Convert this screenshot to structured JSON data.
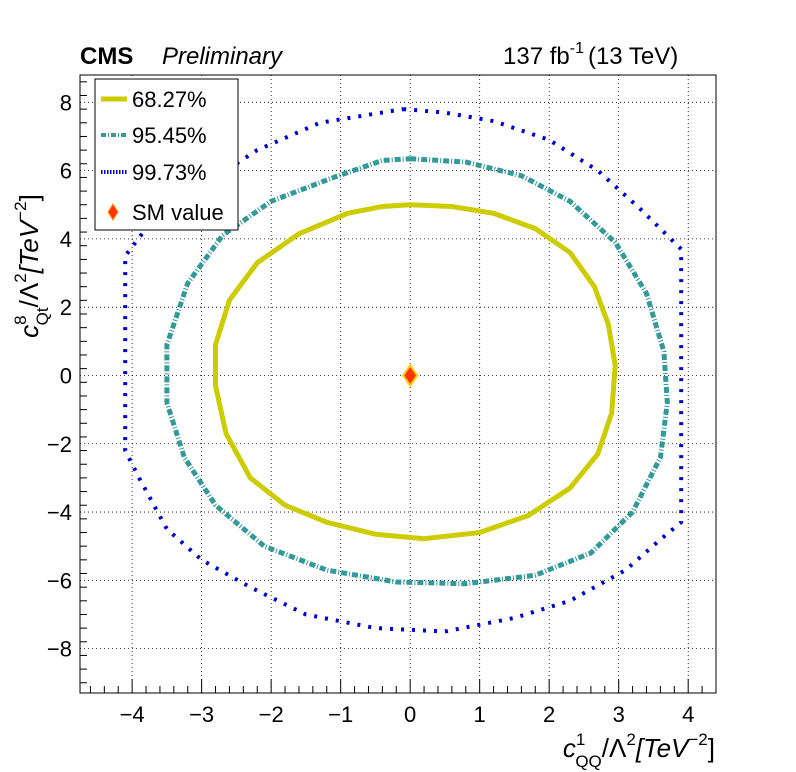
{
  "header": {
    "experiment": "CMS",
    "status": "Preliminary",
    "lumi": "137 fb",
    "lumi_exp": "-1",
    "energy": "(13 TeV)"
  },
  "chart_data": {
    "type": "scatter",
    "xlabel": {
      "c": "c",
      "sup": "1",
      "sub": "QQ",
      "rest": "/Λ",
      "sq": "2",
      "unit": "[TeV",
      "unit_exp": "−2",
      "close": "]"
    },
    "ylabel": {
      "c": "c",
      "sup": "8",
      "sub": "Qt",
      "rest": "/Λ",
      "sq": "2",
      "unit": "[TeV",
      "unit_exp": "−2",
      "close": "]"
    },
    "xlim": [
      -4.75,
      4.4
    ],
    "ylim": [
      -9.3,
      8.8
    ],
    "xticks": [
      -4,
      -3,
      -2,
      -1,
      0,
      1,
      2,
      3,
      4
    ],
    "yticks": [
      -8,
      -6,
      -4,
      -2,
      0,
      2,
      4,
      6,
      8
    ],
    "grid": true,
    "legend_position": "top-left",
    "series": [
      {
        "name": "68.27%",
        "color": "#cccc00",
        "style": "solid",
        "points": [
          [
            0,
            5.0
          ],
          [
            0.6,
            4.95
          ],
          [
            1.2,
            4.75
          ],
          [
            1.8,
            4.3
          ],
          [
            2.3,
            3.6
          ],
          [
            2.65,
            2.6
          ],
          [
            2.85,
            1.5
          ],
          [
            2.95,
            0.3
          ],
          [
            2.9,
            -1.1
          ],
          [
            2.7,
            -2.3
          ],
          [
            2.3,
            -3.3
          ],
          [
            1.7,
            -4.1
          ],
          [
            1.0,
            -4.6
          ],
          [
            0.2,
            -4.78
          ],
          [
            -0.5,
            -4.65
          ],
          [
            -1.2,
            -4.3
          ],
          [
            -1.8,
            -3.8
          ],
          [
            -2.3,
            -3.0
          ],
          [
            -2.65,
            -1.7
          ],
          [
            -2.8,
            -0.3
          ],
          [
            -2.8,
            0.9
          ],
          [
            -2.6,
            2.2
          ],
          [
            -2.2,
            3.3
          ],
          [
            -1.6,
            4.15
          ],
          [
            -0.9,
            4.75
          ],
          [
            -0.4,
            4.95
          ],
          [
            0,
            5.0
          ]
        ]
      },
      {
        "name": "95.45%",
        "color": "#339999",
        "style": "dashdot",
        "points": [
          [
            0,
            6.35
          ],
          [
            0.8,
            6.25
          ],
          [
            1.6,
            5.85
          ],
          [
            2.3,
            5.1
          ],
          [
            2.95,
            3.9
          ],
          [
            3.4,
            2.4
          ],
          [
            3.65,
            0.7
          ],
          [
            3.7,
            -0.8
          ],
          [
            3.6,
            -2.4
          ],
          [
            3.2,
            -4.0
          ],
          [
            2.6,
            -5.2
          ],
          [
            1.8,
            -5.85
          ],
          [
            0.8,
            -6.1
          ],
          [
            -0.2,
            -6.05
          ],
          [
            -1.2,
            -5.7
          ],
          [
            -2.1,
            -5.0
          ],
          [
            -2.8,
            -3.8
          ],
          [
            -3.25,
            -2.4
          ],
          [
            -3.5,
            -0.8
          ],
          [
            -3.5,
            0.9
          ],
          [
            -3.2,
            2.7
          ],
          [
            -2.7,
            4.1
          ],
          [
            -2.0,
            5.1
          ],
          [
            -1.1,
            5.8
          ],
          [
            -0.4,
            6.3
          ],
          [
            0,
            6.35
          ]
        ]
      },
      {
        "name": "99.73%",
        "color": "#0000cc",
        "style": "dotted",
        "points": [
          [
            -0.1,
            7.8
          ],
          [
            0.5,
            7.7
          ],
          [
            1.2,
            7.45
          ],
          [
            2.0,
            6.9
          ],
          [
            2.7,
            6.0
          ],
          [
            3.3,
            4.9
          ],
          [
            3.7,
            4.1
          ],
          [
            3.9,
            3.7
          ],
          [
            3.9,
            2.0
          ],
          [
            3.9,
            0.0
          ],
          [
            3.9,
            -2.0
          ],
          [
            3.9,
            -4.3
          ],
          [
            3.6,
            -4.8
          ],
          [
            3.1,
            -5.7
          ],
          [
            2.3,
            -6.6
          ],
          [
            1.5,
            -7.1
          ],
          [
            0.5,
            -7.5
          ],
          [
            -0.5,
            -7.4
          ],
          [
            -1.5,
            -7.0
          ],
          [
            -2.3,
            -6.2
          ],
          [
            -3.0,
            -5.4
          ],
          [
            -3.5,
            -4.5
          ],
          [
            -3.9,
            -3.0
          ],
          [
            -4.1,
            -2.2
          ],
          [
            -4.1,
            0.0
          ],
          [
            -4.1,
            2.0
          ],
          [
            -4.1,
            3.5
          ],
          [
            -3.8,
            4.3
          ],
          [
            -3.1,
            5.4
          ],
          [
            -2.2,
            6.6
          ],
          [
            -1.3,
            7.4
          ],
          [
            -0.1,
            7.8
          ]
        ]
      },
      {
        "name": "SM value",
        "color": "#ff3300",
        "style": "marker",
        "points": [
          [
            0,
            0
          ]
        ]
      }
    ]
  }
}
